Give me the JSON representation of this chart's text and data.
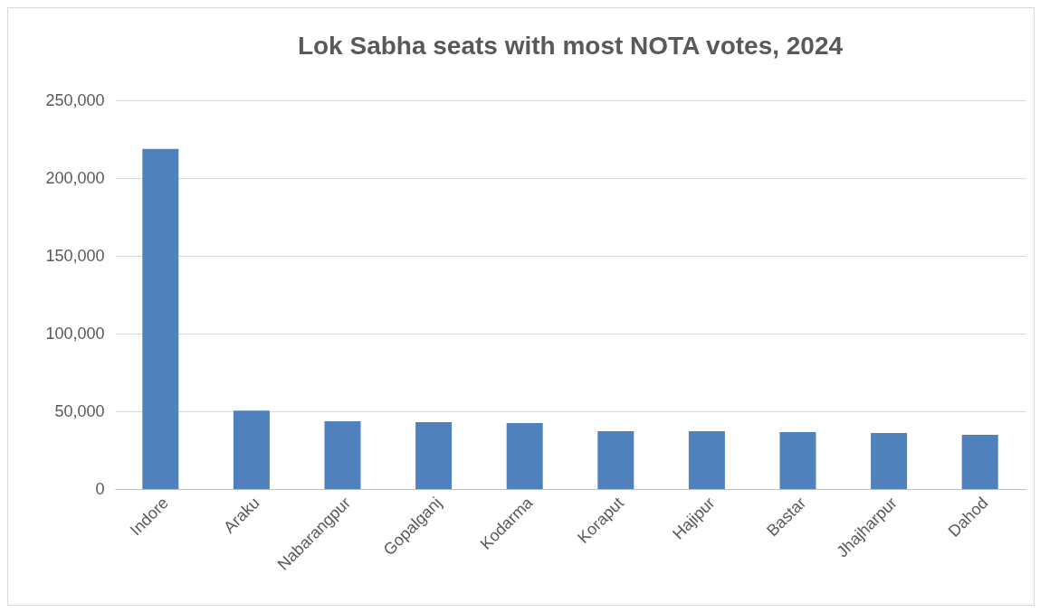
{
  "chart_data": {
    "type": "bar",
    "title": "Lok Sabha seats with most NOTA votes, 2024",
    "categories": [
      "Indore",
      "Araku",
      "Nabarangpur",
      "Gopalganj",
      "Kodarma",
      "Koraput",
      "Hajipur",
      "Bastar",
      "Jhajharpur",
      "Dahod"
    ],
    "values": [
      218700,
      50500,
      43600,
      43000,
      42400,
      37200,
      37200,
      36600,
      36000,
      34900
    ],
    "color": "#4f81bd",
    "ylim": [
      0,
      250000
    ],
    "yticks": [
      0,
      {
        "value": 50000,
        "label": "50,000"
      },
      {
        "value": 100000,
        "label": "100,000"
      },
      {
        "value": 150000,
        "label": "150,000"
      },
      {
        "value": 200000,
        "label": "200,000"
      },
      {
        "value": 250000,
        "label": "250,000"
      }
    ],
    "grid": "y"
  }
}
